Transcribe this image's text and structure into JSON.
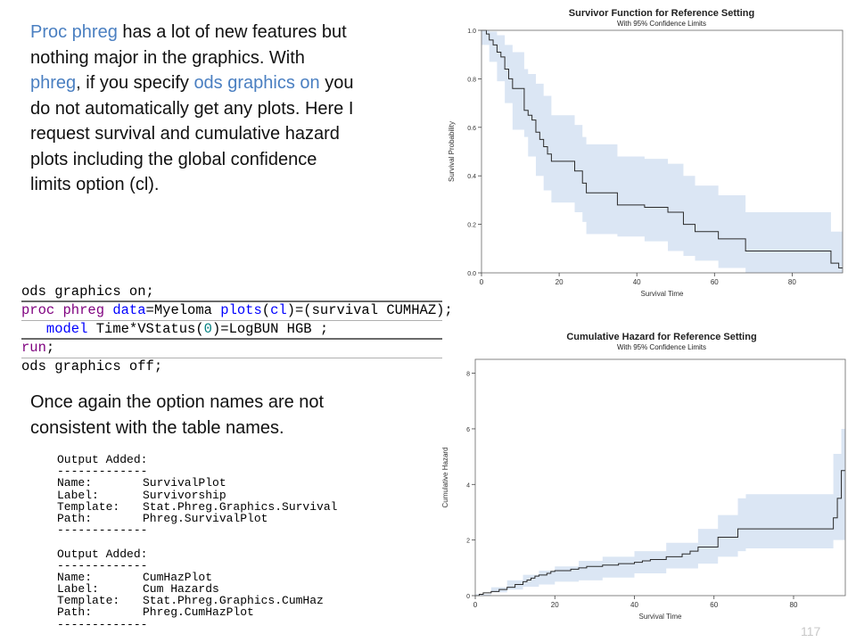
{
  "intro": {
    "p1": "Proc phreg",
    "p2": " has a lot of new features but nothing major in the graphics. With ",
    "p3": "phreg",
    "p4": ", if you specify ",
    "p5": "ods graphics on",
    "p6": " you do not automatically get any plots. Here I request survival and cumulative hazard plots including the global confidence limits option (cl)."
  },
  "code": {
    "l1a": "ods graphics on",
    "l1b": ";",
    "l2a": "proc phreg",
    "l2b": " ",
    "l2c": "data",
    "l2d": "=Myeloma ",
    "l2e": "plots",
    "l2f": "(",
    "l2g": "cl",
    "l2h": ")=(survival CUMHAZ);",
    "l3a": "   ",
    "l3b": "model",
    "l3c": " Time*VStatus(",
    "l3d": "0",
    "l3e": ")=LogBUN HGB ;",
    "l4a": "run",
    "l4b": ";",
    "l5a": "ods graphics off",
    "l5b": ";"
  },
  "note": "Once again the option names are not consistent with the table names.",
  "log": {
    "header": "Output Added:",
    "sep": "-------------",
    "name_k": "Name:",
    "label_k": "Label:",
    "template_k": "Template:",
    "path_k": "Path:",
    "out1": {
      "name": "SurvivalPlot",
      "label": "Survivorship",
      "template": "Stat.Phreg.Graphics.Survival",
      "path": "Phreg.SurvivalPlot"
    },
    "out2": {
      "name": "CumHazPlot",
      "label": "Cum Hazards",
      "template": "Stat.Phreg.Graphics.CumHaz",
      "path": "Phreg.CumHazPlot"
    }
  },
  "page_number": "117",
  "chart_data": [
    {
      "type": "line",
      "title": "Survivor Function for Reference Setting",
      "subtitle": "With 95% Confidence Limits",
      "xlabel": "Survival Time",
      "ylabel": "Survival Probability",
      "xlim": [
        0,
        93
      ],
      "ylim": [
        0,
        1
      ],
      "xticks": [
        "0",
        "20",
        "40",
        "60",
        "80"
      ],
      "yticks": [
        "0.0",
        "0.2",
        "0.4",
        "0.6",
        "0.8",
        "1.0"
      ],
      "grid": false,
      "band_color": "#dbe6f4",
      "line_color": "#2b2b2b",
      "series": [
        {
          "name": "",
          "kind": "step",
          "x": [
            0,
            1.25,
            2,
            3,
            4,
            5,
            6,
            7,
            8,
            11,
            12,
            13,
            14,
            15,
            16,
            17,
            18,
            19,
            24,
            26,
            27,
            35,
            42,
            48,
            52,
            55,
            61,
            68,
            90,
            92,
            93
          ],
          "y": [
            1.0,
            0.985,
            0.96,
            0.94,
            0.91,
            0.89,
            0.84,
            0.8,
            0.76,
            0.67,
            0.65,
            0.63,
            0.58,
            0.55,
            0.52,
            0.49,
            0.46,
            0.46,
            0.42,
            0.37,
            0.33,
            0.28,
            0.27,
            0.25,
            0.2,
            0.17,
            0.14,
            0.09,
            0.04,
            0.02,
            0.02
          ]
        },
        {
          "name": "",
          "kind": "band",
          "x": [
            0,
            2,
            4,
            6,
            8,
            11,
            12,
            14,
            16,
            18,
            24,
            26,
            27,
            35,
            42,
            48,
            52,
            55,
            61,
            68,
            90,
            93
          ],
          "lower": [
            1.0,
            0.94,
            0.87,
            0.79,
            0.7,
            0.59,
            0.56,
            0.48,
            0.4,
            0.34,
            0.29,
            0.25,
            0.21,
            0.16,
            0.15,
            0.13,
            0.09,
            0.07,
            0.05,
            0.02,
            0.0,
            0.0
          ],
          "upper": [
            1.0,
            0.995,
            0.98,
            0.94,
            0.91,
            0.84,
            0.82,
            0.78,
            0.73,
            0.65,
            0.61,
            0.56,
            0.53,
            0.48,
            0.47,
            0.45,
            0.4,
            0.36,
            0.32,
            0.25,
            0.17,
            0.06
          ]
        }
      ]
    },
    {
      "type": "line",
      "title": "Cumulative Hazard for Reference Setting",
      "subtitle": "With 95% Confidence Limits",
      "xlabel": "Survival Time",
      "ylabel": "Cumulative Hazard",
      "xlim": [
        0,
        93
      ],
      "ylim": [
        0,
        8.5
      ],
      "xticks": [
        "0",
        "20",
        "40",
        "60",
        "80"
      ],
      "yticks": [
        "0",
        "2",
        "4",
        "6",
        "8"
      ],
      "grid": false,
      "band_color": "#dbe6f4",
      "line_color": "#2b2b2b",
      "series": [
        {
          "name": "",
          "kind": "step",
          "x": [
            0,
            1,
            2,
            4,
            6,
            8,
            10,
            12,
            13,
            14,
            15,
            16,
            18,
            19,
            20,
            24,
            26,
            28,
            32,
            36,
            40,
            42,
            44,
            48,
            52,
            54,
            56,
            61,
            66,
            68,
            90,
            91,
            92,
            93
          ],
          "y": [
            0,
            0.05,
            0.1,
            0.15,
            0.22,
            0.3,
            0.4,
            0.5,
            0.56,
            0.63,
            0.7,
            0.74,
            0.8,
            0.87,
            0.9,
            0.95,
            1.0,
            1.05,
            1.1,
            1.15,
            1.2,
            1.25,
            1.3,
            1.4,
            1.5,
            1.6,
            1.75,
            2.1,
            2.4,
            2.4,
            2.8,
            3.5,
            4.5,
            4.5
          ]
        },
        {
          "name": "",
          "kind": "band",
          "x": [
            0,
            4,
            8,
            12,
            16,
            20,
            26,
            32,
            40,
            48,
            56,
            61,
            66,
            68,
            90,
            92,
            93
          ],
          "lower": [
            0,
            0.05,
            0.12,
            0.22,
            0.32,
            0.4,
            0.5,
            0.55,
            0.65,
            0.8,
            0.98,
            1.15,
            1.4,
            1.6,
            1.7,
            2.0,
            2.0
          ],
          "upper": [
            0,
            0.3,
            0.55,
            0.75,
            0.9,
            1.05,
            1.25,
            1.4,
            1.6,
            1.9,
            2.4,
            2.9,
            3.5,
            3.65,
            5.1,
            6.0,
            6.0
          ]
        }
      ]
    }
  ]
}
